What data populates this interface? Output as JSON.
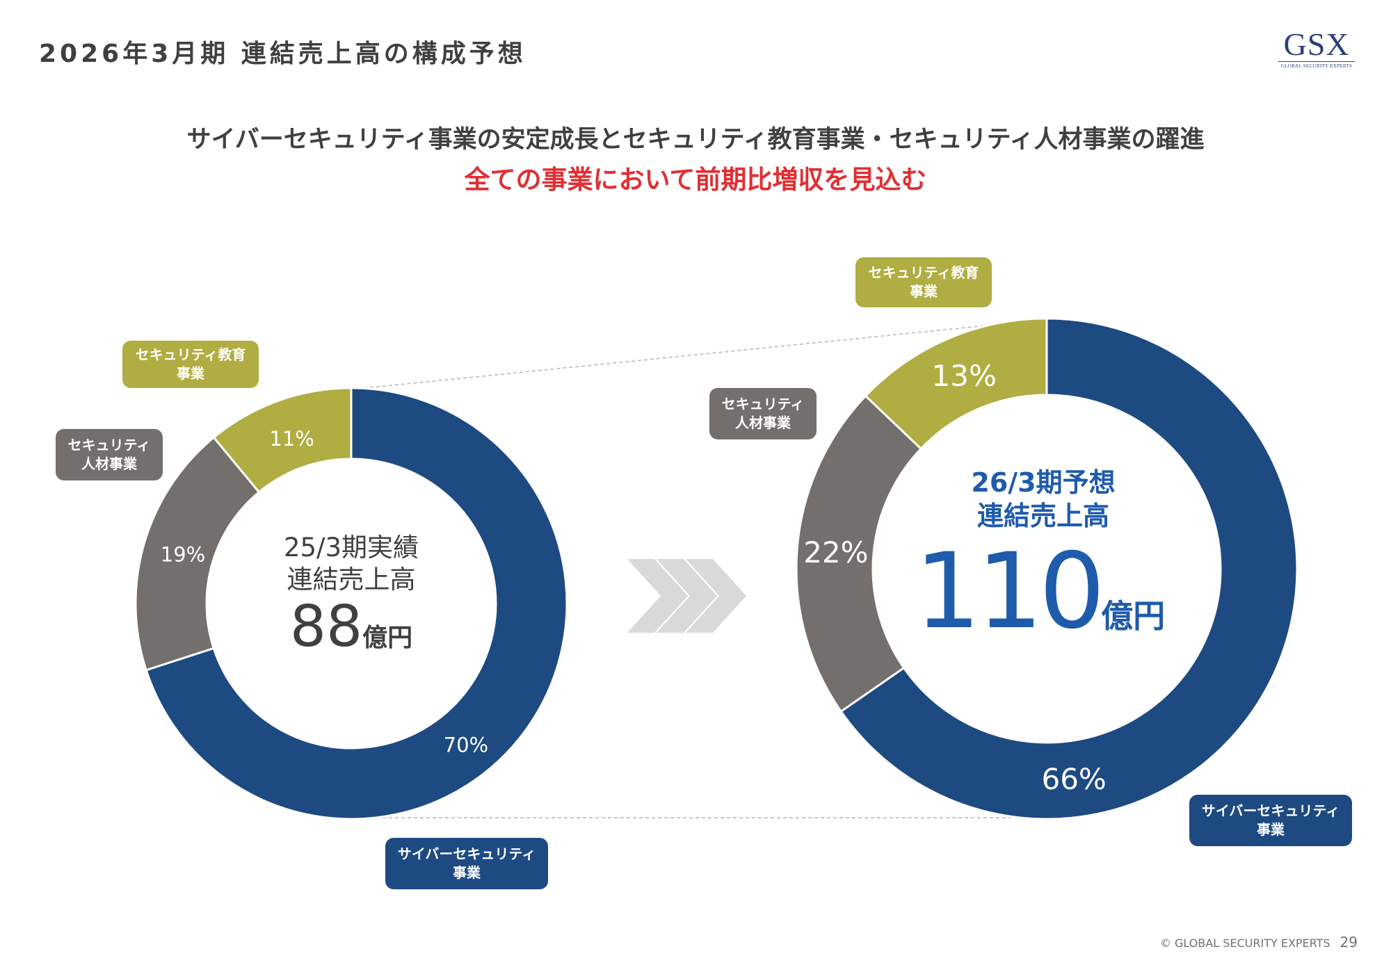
{
  "page": {
    "title": "2026年3月期 連結売上高の構成予想",
    "headline": "サイバーセキュリティ事業の安定成長とセキュリティ教育事業・セキュリティ人材事業の躍進",
    "subheadline": "全ての事業において前期比増収を見込む",
    "logo": {
      "main": "GSX",
      "sub": "GLOBAL SECURITY EXPERTS"
    },
    "footer": {
      "copyright": "© GLOBAL SECURITY EXPERTS",
      "page_number": "29"
    }
  },
  "colors": {
    "cyber": "#1e4a82",
    "talent": "#736f6d",
    "education": "#b0ad42",
    "accent_blue": "#1f5bab",
    "accent_red": "#e02f33"
  },
  "categories": {
    "cyber": {
      "line1": "サイバーセキュリティ",
      "line2": "事業"
    },
    "talent": {
      "line1": "セキュリティ",
      "line2": "人材事業"
    },
    "education": {
      "line1": "セキュリティ教育",
      "line2": "事業"
    }
  },
  "chart_data": [
    {
      "type": "pie",
      "title": "25/3期実績 連結売上高",
      "center": {
        "line1": "25/3期実績",
        "line2": "連結売上高",
        "amount": "88",
        "unit": "億円"
      },
      "slices": [
        {
          "key": "cyber",
          "label": "サイバーセキュリティ事業",
          "value": 70,
          "display": "70%"
        },
        {
          "key": "talent",
          "label": "セキュリティ人材事業",
          "value": 19,
          "display": "19%"
        },
        {
          "key": "education",
          "label": "セキュリティ教育事業",
          "value": 11,
          "display": "11%"
        }
      ]
    },
    {
      "type": "pie",
      "title": "26/3期予想 連結売上高",
      "center": {
        "line1": "26/3期予想",
        "line2": "連結売上高",
        "amount": "110",
        "unit": "億円"
      },
      "slices": [
        {
          "key": "cyber",
          "label": "サイバーセキュリティ事業",
          "value": 66,
          "display": "66%"
        },
        {
          "key": "talent",
          "label": "セキュリティ人材事業",
          "value": 22,
          "display": "22%"
        },
        {
          "key": "education",
          "label": "セキュリティ教育事業",
          "value": 13,
          "display": "13%"
        }
      ]
    }
  ]
}
